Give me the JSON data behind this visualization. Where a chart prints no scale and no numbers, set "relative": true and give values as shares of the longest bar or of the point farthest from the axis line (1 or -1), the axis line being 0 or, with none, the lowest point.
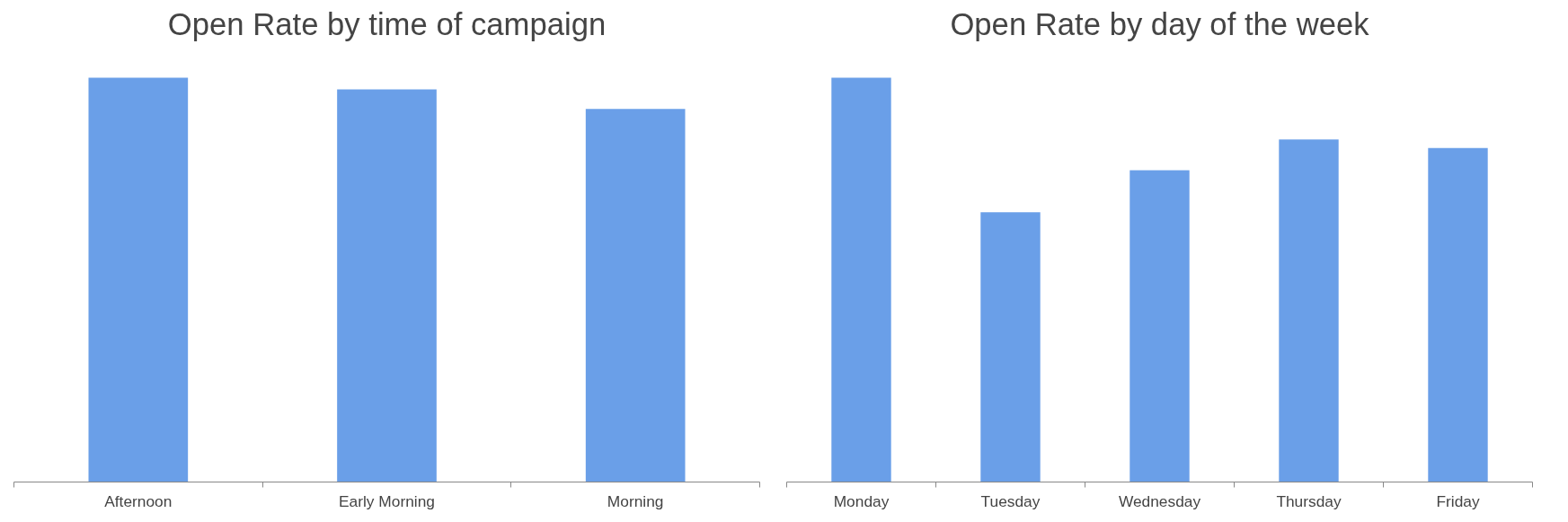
{
  "chart_data": [
    {
      "type": "bar",
      "title": "Open Rate by time of campaign",
      "categories": [
        "Afternoon",
        "Early Morning",
        "Morning"
      ],
      "values": [
        1,
        0.971,
        0.923
      ],
      "color": "#6a9fe8",
      "relative": true
    },
    {
      "type": "bar",
      "title": "Open Rate by day of the week",
      "categories": [
        "Monday",
        "Tuesday",
        "Wednesday",
        "Thursday",
        "Friday"
      ],
      "values": [
        1,
        0.667,
        0.771,
        0.847,
        0.826
      ],
      "color": "#6a9fe8",
      "relative": true
    }
  ]
}
